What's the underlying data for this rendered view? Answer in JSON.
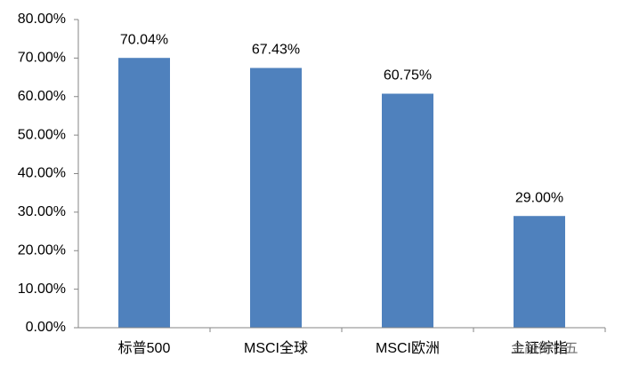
{
  "chart_data": {
    "type": "bar",
    "categories": [
      "标普500",
      "MSCI全球",
      "MSCI欧洲",
      "上证综指"
    ],
    "values": [
      70.04,
      67.43,
      60.75,
      29.0
    ],
    "value_labels": [
      "70.04%",
      "67.43%",
      "60.75%",
      "29.00%"
    ],
    "color": "#4f81bd",
    "ylim": [
      0,
      80
    ],
    "yticks": [
      {
        "value": 0,
        "label": "0.00%"
      },
      {
        "value": 10,
        "label": "10.00%"
      },
      {
        "value": 20,
        "label": "20.00%"
      },
      {
        "value": 30,
        "label": "30.00%"
      },
      {
        "value": 40,
        "label": "40.00%"
      },
      {
        "value": 50,
        "label": "50.00%"
      },
      {
        "value": 60,
        "label": "60.00%"
      },
      {
        "value": 70,
        "label": "70.00%"
      },
      {
        "value": 80,
        "label": "80.00%"
      }
    ],
    "grid": false,
    "watermark": "金融街廿五"
  }
}
